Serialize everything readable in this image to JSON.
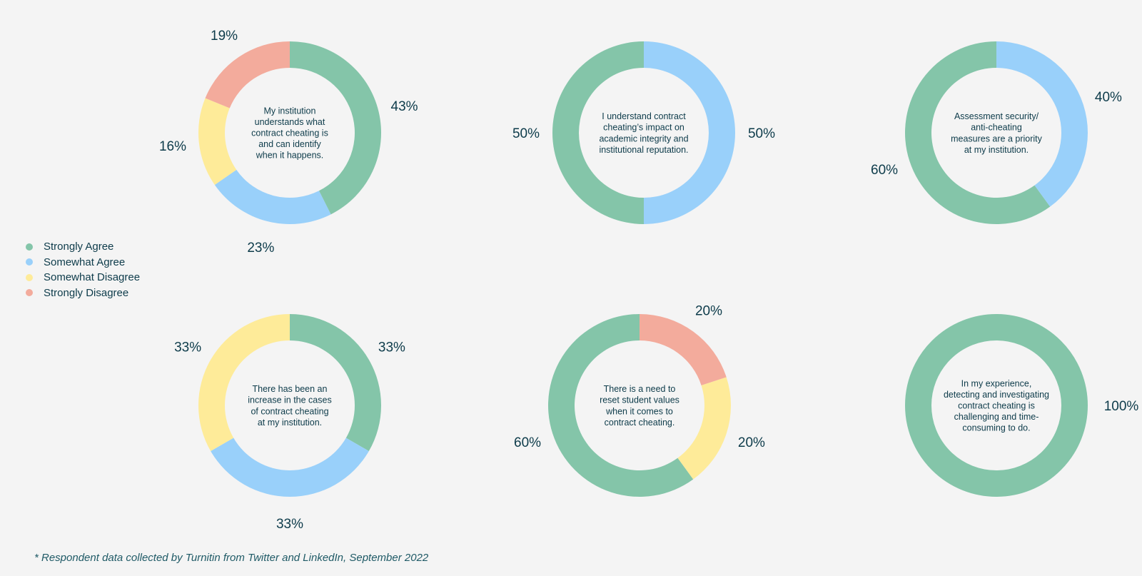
{
  "colors": {
    "Strongly Agree": "#84c5a9",
    "Somewhat Agree": "#99d0fa",
    "Somewhat Disagree": "#feeb99",
    "Strongly Disagree": "#f3ab9c",
    "text": "#0d3b4a"
  },
  "legend": {
    "items": [
      {
        "label": "Strongly Agree",
        "color": "#84c5a9"
      },
      {
        "label": "Somewhat Agree",
        "color": "#99d0fa"
      },
      {
        "label": "Somewhat Disagree",
        "color": "#feeb99"
      },
      {
        "label": "Strongly Disagree",
        "color": "#f3ab9c"
      }
    ]
  },
  "footnote": "* Respondent data collected by Turnitin from Twitter and LinkedIn, September 2022",
  "chart_data": [
    {
      "type": "pie",
      "title": [
        "My institution",
        "understands what",
        "contract cheating is",
        "and can identify",
        "when it happens."
      ],
      "slices": [
        {
          "category": "Strongly Agree",
          "value": 43,
          "label": "43%"
        },
        {
          "category": "Somewhat Agree",
          "value": 23,
          "label": "23%"
        },
        {
          "category": "Somewhat Disagree",
          "value": 16,
          "label": "16%"
        },
        {
          "category": "Strongly Disagree",
          "value": 19,
          "label": "19%"
        }
      ]
    },
    {
      "type": "pie",
      "title": [
        "I understand contract",
        "cheating’s impact on",
        "academic integrity and",
        "institutional reputation."
      ],
      "slices": [
        {
          "category": "Strongly Agree",
          "value": 50,
          "label": "50%"
        },
        {
          "category": "Somewhat Agree",
          "value": 50,
          "label": "50%"
        }
      ]
    },
    {
      "type": "pie",
      "title": [
        "Assessment security/",
        "anti-cheating",
        "measures are a priority",
        "at my institution."
      ],
      "slices": [
        {
          "category": "Strongly Agree",
          "value": 60,
          "label": "60%"
        },
        {
          "category": "Somewhat Agree",
          "value": 40,
          "label": "40%"
        }
      ]
    },
    {
      "type": "pie",
      "title": [
        "There has been an",
        "increase in the cases",
        "of contract cheating",
        "at my institution."
      ],
      "slices": [
        {
          "category": "Strongly Agree",
          "value": 33,
          "label": "33%"
        },
        {
          "category": "Somewhat Agree",
          "value": 33,
          "label": "33%"
        },
        {
          "category": "Somewhat Disagree",
          "value": 33,
          "label": "33%"
        }
      ]
    },
    {
      "type": "pie",
      "title": [
        "There is a need to",
        "reset student values",
        "when it comes to",
        "contract cheating."
      ],
      "slices": [
        {
          "category": "Strongly Agree",
          "value": 60,
          "label": "60%"
        },
        {
          "category": "Somewhat Disagree",
          "value": 20,
          "label": "20%"
        },
        {
          "category": "Strongly Disagree",
          "value": 20,
          "label": "20%"
        }
      ]
    },
    {
      "type": "pie",
      "title": [
        "In my experience,",
        "detecting and investigating",
        "contract cheating is",
        "challenging and time-",
        "consuming to do."
      ],
      "slices": [
        {
          "category": "Strongly Agree",
          "value": 100,
          "label": "100%"
        }
      ]
    }
  ]
}
